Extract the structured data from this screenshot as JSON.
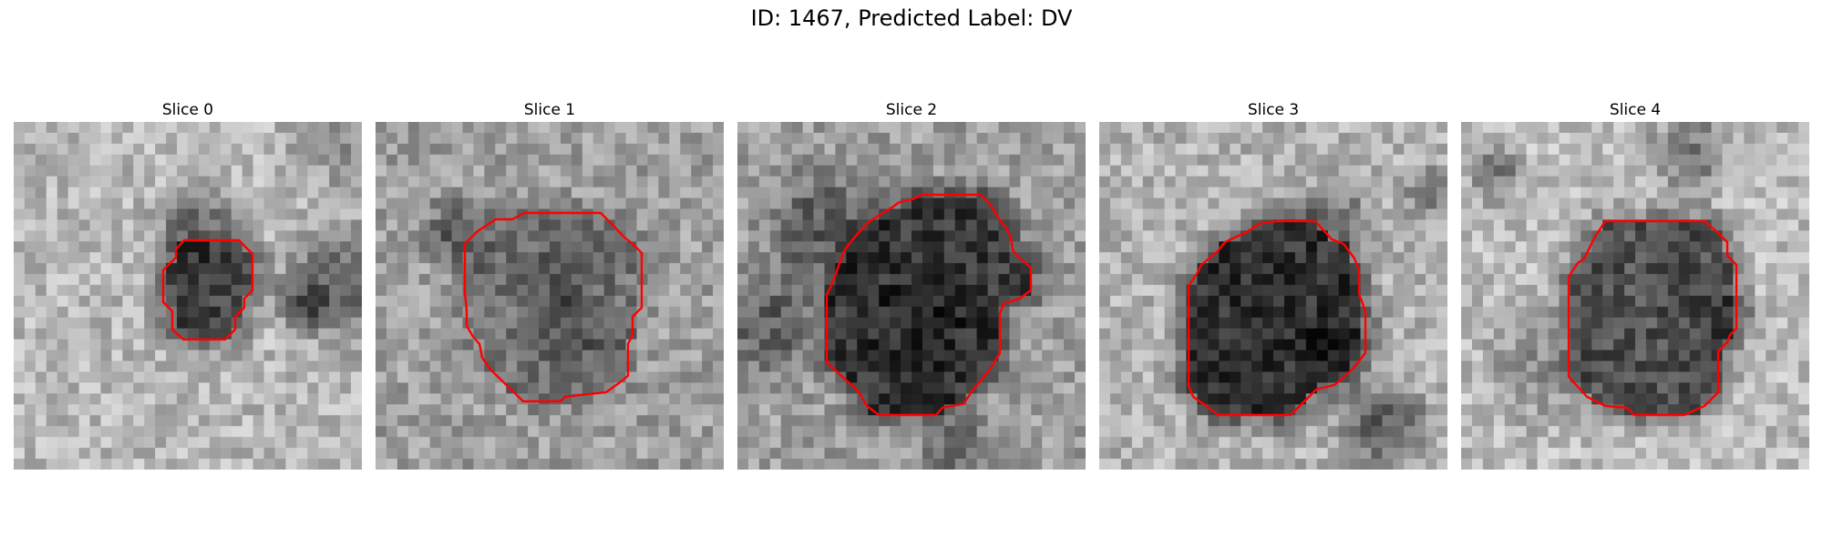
{
  "figure": {
    "title": "ID: 1467, Predicted Label: DV",
    "contour_color": "#ff0000",
    "colormap": "grayscale"
  },
  "panels": [
    {
      "title": "Slice 0"
    },
    {
      "title": "Slice 1"
    },
    {
      "title": "Slice 2"
    },
    {
      "title": "Slice 3"
    },
    {
      "title": "Slice 4"
    }
  ]
}
